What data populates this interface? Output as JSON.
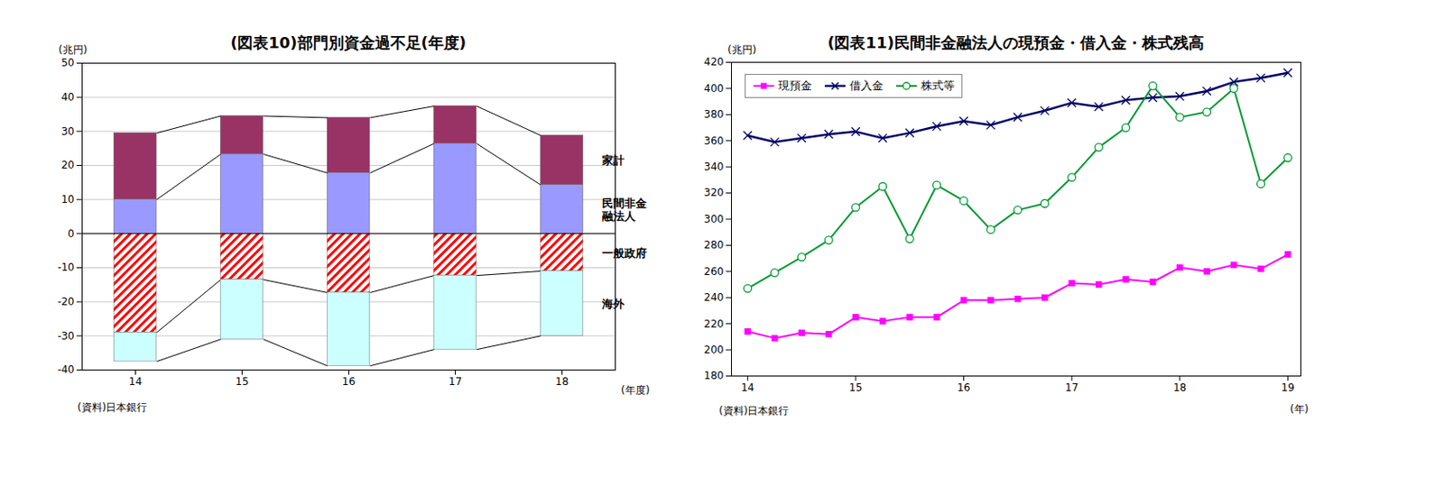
{
  "chart_data": [
    {
      "type": "bar",
      "title": "(図表10)部門別資金過不足(年度)",
      "ylabel": "(兆円)",
      "xlabel": "(年度)",
      "source": "(資料)日本銀行",
      "stacked": true,
      "grid": true,
      "categories": [
        "14",
        "15",
        "16",
        "17",
        "18"
      ],
      "series": [
        {
          "name": "民間非金融法人",
          "color": "#9999ff",
          "values": [
            10,
            23.3,
            17.8,
            26.4,
            14.3
          ]
        },
        {
          "name": "家計",
          "color": "#993366",
          "values": [
            19.5,
            11.2,
            16.2,
            11,
            14.5
          ]
        },
        {
          "name": "一般政府",
          "color": "#ff0000",
          "line_style": "hatched",
          "values": [
            -29,
            -13.5,
            -17.3,
            -12.3,
            -11
          ]
        },
        {
          "name": "海外",
          "color": "#ccffff",
          "values": [
            -8.5,
            -17.5,
            -21.5,
            -21.7,
            -19
          ]
        }
      ],
      "ylim": [
        -40,
        50
      ],
      "yticks": [
        -40,
        -30,
        -20,
        -10,
        0,
        10,
        20,
        30,
        40,
        50
      ]
    },
    {
      "type": "line",
      "title": "(図表11)民間非金融法人の現預金・借入金・株式残高",
      "ylabel": "(兆円)",
      "xlabel": "(年)",
      "source": "(資料)日本銀行",
      "legend": "top-left",
      "grid": false,
      "x": [
        14,
        14.25,
        14.5,
        14.75,
        15,
        15.25,
        15.5,
        15.75,
        16,
        16.25,
        16.5,
        16.75,
        17,
        17.25,
        17.5,
        17.75,
        18,
        18.25,
        18.5,
        18.75,
        19
      ],
      "series": [
        {
          "name": "現預金",
          "color": "#ff00ff",
          "marker": "square",
          "values": [
            214,
            209,
            213,
            212,
            225,
            222,
            225,
            225,
            238,
            238,
            239,
            240,
            251,
            250,
            254,
            252,
            263,
            260,
            265,
            262,
            273
          ]
        },
        {
          "name": "借入金",
          "color": "#000066",
          "marker": "x",
          "values": [
            364,
            359,
            362,
            365,
            367,
            362,
            366,
            371,
            375,
            372,
            378,
            383,
            389,
            386,
            391,
            393,
            394,
            398,
            405,
            408,
            412
          ]
        },
        {
          "name": "株式等",
          "color": "#009933",
          "marker": "circle-open",
          "values": [
            247,
            259,
            271,
            284,
            309,
            325,
            285,
            326,
            314,
            292,
            307,
            312,
            332,
            355,
            370,
            402,
            378,
            382,
            400,
            327,
            347
          ]
        }
      ],
      "xlim": [
        13.85,
        19.12
      ],
      "xticks": [
        14,
        15,
        16,
        17,
        18,
        19
      ],
      "ylim": [
        180,
        420
      ],
      "yticks": [
        180,
        200,
        220,
        240,
        260,
        280,
        300,
        320,
        340,
        360,
        380,
        400,
        420
      ]
    }
  ]
}
